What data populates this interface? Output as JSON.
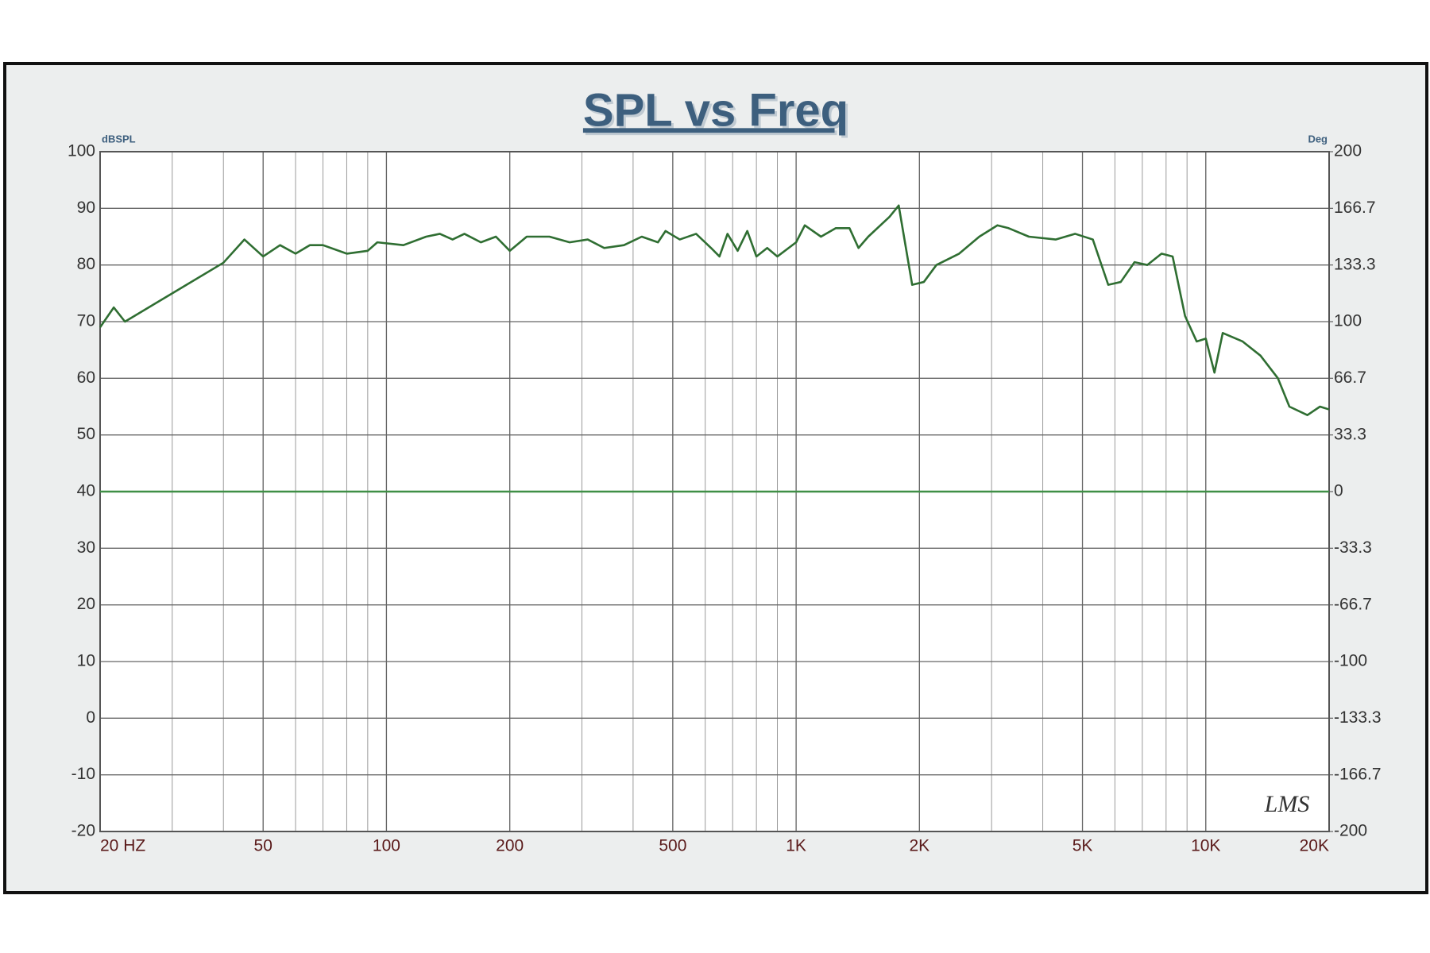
{
  "chart_data": {
    "type": "line",
    "title": "SPL vs Freq",
    "y_label": "dBSPL",
    "y2_label": "Deg",
    "annotation": "LMS",
    "xscale": "log",
    "grid": true,
    "xlim": [
      20,
      20000
    ],
    "xticks": [
      {
        "value": 20,
        "label": "20 HZ"
      },
      50,
      100,
      200,
      500,
      {
        "value": 1000,
        "label": "1K"
      },
      {
        "value": 2000,
        "label": "2K"
      },
      {
        "value": 5000,
        "label": "5K"
      },
      {
        "value": 10000,
        "label": "10K"
      },
      {
        "value": 20000,
        "label": "20K"
      }
    ],
    "ylim": [
      -20,
      100
    ],
    "yticks": [
      -20,
      -10,
      0,
      10,
      20,
      30,
      40,
      50,
      60,
      70,
      80,
      90,
      100
    ],
    "y2lim": [
      -200,
      200
    ],
    "y2ticks": [
      -200,
      -166.7,
      -133.3,
      -100,
      -66.7,
      -33.3,
      0,
      33.3,
      66.7,
      100,
      133.3,
      166.7,
      200
    ],
    "series": [
      {
        "color": "#2f6e32",
        "x": [
          20,
          21.6,
          23,
          30,
          40,
          45,
          50,
          55,
          60,
          65,
          70,
          80,
          90,
          95,
          110,
          125,
          135,
          145,
          155,
          170,
          185,
          200,
          220,
          250,
          280,
          310,
          340,
          380,
          420,
          460,
          480,
          520,
          570,
          620,
          650,
          680,
          720,
          760,
          800,
          850,
          900,
          1000,
          1050,
          1150,
          1250,
          1350,
          1420,
          1500,
          1690,
          1780,
          1920,
          2050,
          2200,
          2500,
          2800,
          3100,
          3300,
          3700,
          4300,
          4800,
          5300,
          5780,
          6200,
          6700,
          7200,
          7800,
          8300,
          8900,
          9500,
          10000,
          10500,
          11000,
          12300,
          13600,
          15000,
          16000,
          17700,
          19000,
          20000
        ],
        "values": [
          69,
          72.5,
          70,
          75,
          80.4,
          84.5,
          81.5,
          83.5,
          82,
          83.5,
          83.5,
          82,
          82.5,
          84,
          83.5,
          85,
          85.5,
          84.5,
          85.5,
          84,
          85,
          82.5,
          85,
          85,
          84,
          84.5,
          83,
          83.5,
          85,
          84,
          86,
          84.5,
          85.5,
          83,
          81.5,
          85.5,
          82.5,
          86,
          81.5,
          83,
          81.5,
          84,
          87,
          85,
          86.5,
          86.5,
          83,
          85,
          88.5,
          90.5,
          76.5,
          77,
          80,
          82,
          85,
          87,
          86.5,
          85,
          84.5,
          85.5,
          84.5,
          76.5,
          77,
          80.5,
          80,
          82,
          81.5,
          71,
          66.5,
          67,
          61,
          68,
          66.5,
          64,
          60,
          55,
          53.5,
          55,
          54.5
        ]
      },
      {
        "color": "#3f8f46",
        "axis": "y2",
        "x": [
          20,
          20000
        ],
        "values": [
          0,
          0
        ]
      }
    ]
  }
}
